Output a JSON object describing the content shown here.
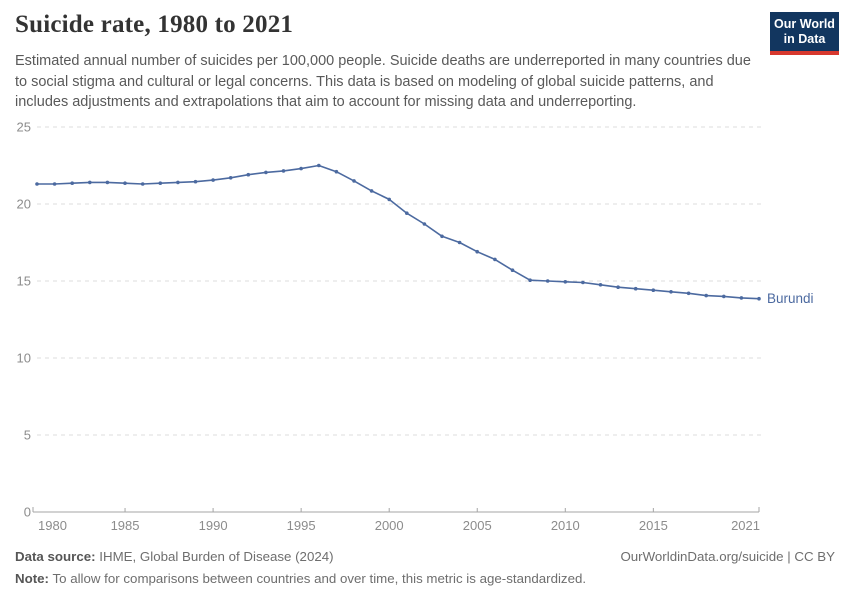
{
  "header": {
    "title": "Suicide rate, 1980 to 2021",
    "subtitle": "Estimated annual number of suicides per 100,000 people. Suicide deaths are underreported in many countries due to social stigma and cultural or legal concerns. This data is based on modeling of global suicide patterns, and includes adjustments and extrapolations that aim to account for missing data and underreporting.",
    "logo": {
      "line1": "Our World",
      "line2": "in Data",
      "bg_color": "#12365f",
      "stripe_color": "#d7382e",
      "text_color": "#ffffff"
    }
  },
  "chart_data": {
    "type": "line",
    "title": "Suicide rate, 1980 to 2021",
    "xlabel": "",
    "ylabel": "",
    "x_range": [
      1980,
      2021
    ],
    "ylim": [
      0,
      25
    ],
    "grid": "horizontal-dashed",
    "legend_position": "end-of-line-label",
    "xticks": [
      1980,
      1985,
      1990,
      1995,
      2000,
      2005,
      2010,
      2015,
      2021
    ],
    "yticks": [
      0,
      5,
      10,
      15,
      20,
      25
    ],
    "x": [
      1980,
      1981,
      1982,
      1983,
      1984,
      1985,
      1986,
      1987,
      1988,
      1989,
      1990,
      1991,
      1992,
      1993,
      1994,
      1995,
      1996,
      1997,
      1998,
      1999,
      2000,
      2001,
      2002,
      2003,
      2004,
      2005,
      2006,
      2007,
      2008,
      2009,
      2010,
      2011,
      2012,
      2013,
      2014,
      2015,
      2016,
      2017,
      2018,
      2019,
      2020,
      2021
    ],
    "series": [
      {
        "name": "Burundi",
        "color": "#4c6aa0",
        "values": [
          21.3,
          21.3,
          21.35,
          21.4,
          21.4,
          21.35,
          21.3,
          21.35,
          21.4,
          21.45,
          21.55,
          21.7,
          21.9,
          22.05,
          22.15,
          22.3,
          22.5,
          22.1,
          21.5,
          20.85,
          20.3,
          19.4,
          18.7,
          17.9,
          17.5,
          16.9,
          16.4,
          15.7,
          15.05,
          15.0,
          14.95,
          14.9,
          14.75,
          14.6,
          14.5,
          14.4,
          14.3,
          14.2,
          14.05,
          14.0,
          13.9,
          13.85
        ]
      }
    ],
    "end_label": "Burundi",
    "colors": {
      "gridline": "#dcdcdc",
      "axis": "#a5a5a5",
      "tick_label": "#8c8c8c"
    }
  },
  "footer": {
    "source_label": "Data source:",
    "source_text": "IHME, Global Burden of Disease (2024)",
    "attribution": "OurWorldinData.org/suicide | CC BY",
    "note_label": "Note:",
    "note_text": "To allow for comparisons between countries and over time, this metric is age-standardized."
  }
}
